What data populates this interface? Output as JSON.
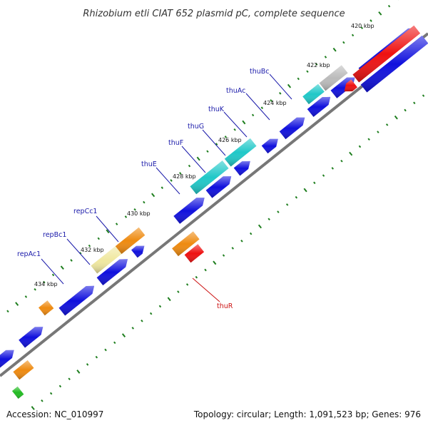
{
  "title": "Rhizobium etli CIAT 652 plasmid pC, complete sequence",
  "footer": {
    "accession": "Accession: NC_010997",
    "summary": "Topology: circular; Length: 1,091,523 bp; Genes: 976"
  },
  "ticks": [
    "420 kbp",
    "422 kbp",
    "424 kbp",
    "426 kbp",
    "428 kbp",
    "430 kbp",
    "432 kbp",
    "434 kbp"
  ],
  "gene_labels": {
    "thuBc": "thuBc",
    "thuAc": "thuAc",
    "thuK": "thuK",
    "thuG": "thuG",
    "thuF": "thuF",
    "thuE": "thuE",
    "repCc1": "repCc1",
    "repBc1": "repBc1",
    "repAc1": "repAc1",
    "thuR": "thuR"
  },
  "colors": {
    "cds": "#1010dd",
    "forward_highlight": "#20c8c8",
    "reverse_highlight": "#ee1111",
    "repC": "#ee8a10",
    "repB": "#f0e8a0",
    "other": "#bbbbbb",
    "green": "#22bb22",
    "backbone": "#777777",
    "tick_mark": "#1e7e1e",
    "label_forward": "#1a1aaa",
    "label_reverse": "#cc1111"
  }
}
